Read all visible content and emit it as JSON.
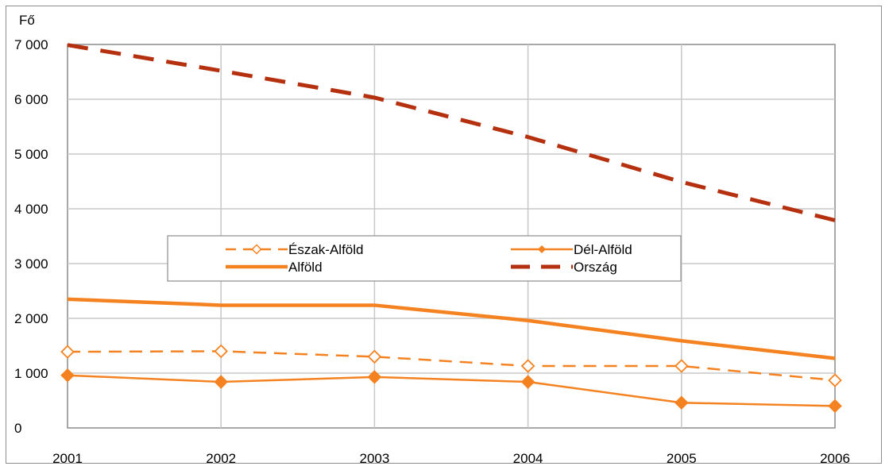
{
  "chart_data": {
    "type": "line",
    "ylabel": "Fő",
    "categories": [
      "2001",
      "2002",
      "2003",
      "2004",
      "2005",
      "2006"
    ],
    "ylim": [
      0,
      7000
    ],
    "yticks": [
      0,
      1000,
      2000,
      3000,
      4000,
      5000,
      6000,
      7000
    ],
    "ytick_labels": [
      "0",
      "1 000",
      "2 000",
      "3 000",
      "4 000",
      "5 000",
      "6 000",
      "7 000"
    ],
    "grid": true,
    "legend_position": "center",
    "series": [
      {
        "name": "Észak-Alföld",
        "values": [
          1390,
          1400,
          1300,
          1130,
          1130,
          870
        ],
        "color": "#f58220",
        "style": "dashed",
        "marker": "diamond-open"
      },
      {
        "name": "Dél-Alföld",
        "values": [
          960,
          840,
          930,
          840,
          460,
          400
        ],
        "color": "#f58220",
        "style": "solid",
        "marker": "diamond-filled"
      },
      {
        "name": "Alföld",
        "values": [
          2350,
          2240,
          2240,
          1960,
          1590,
          1270
        ],
        "color": "#f58220",
        "style": "solid-thick",
        "marker": "none"
      },
      {
        "name": "Ország",
        "values": [
          6990,
          6520,
          6030,
          5310,
          4490,
          3790
        ],
        "color": "#b5300f",
        "style": "dashed-thick",
        "marker": "none"
      }
    ]
  }
}
